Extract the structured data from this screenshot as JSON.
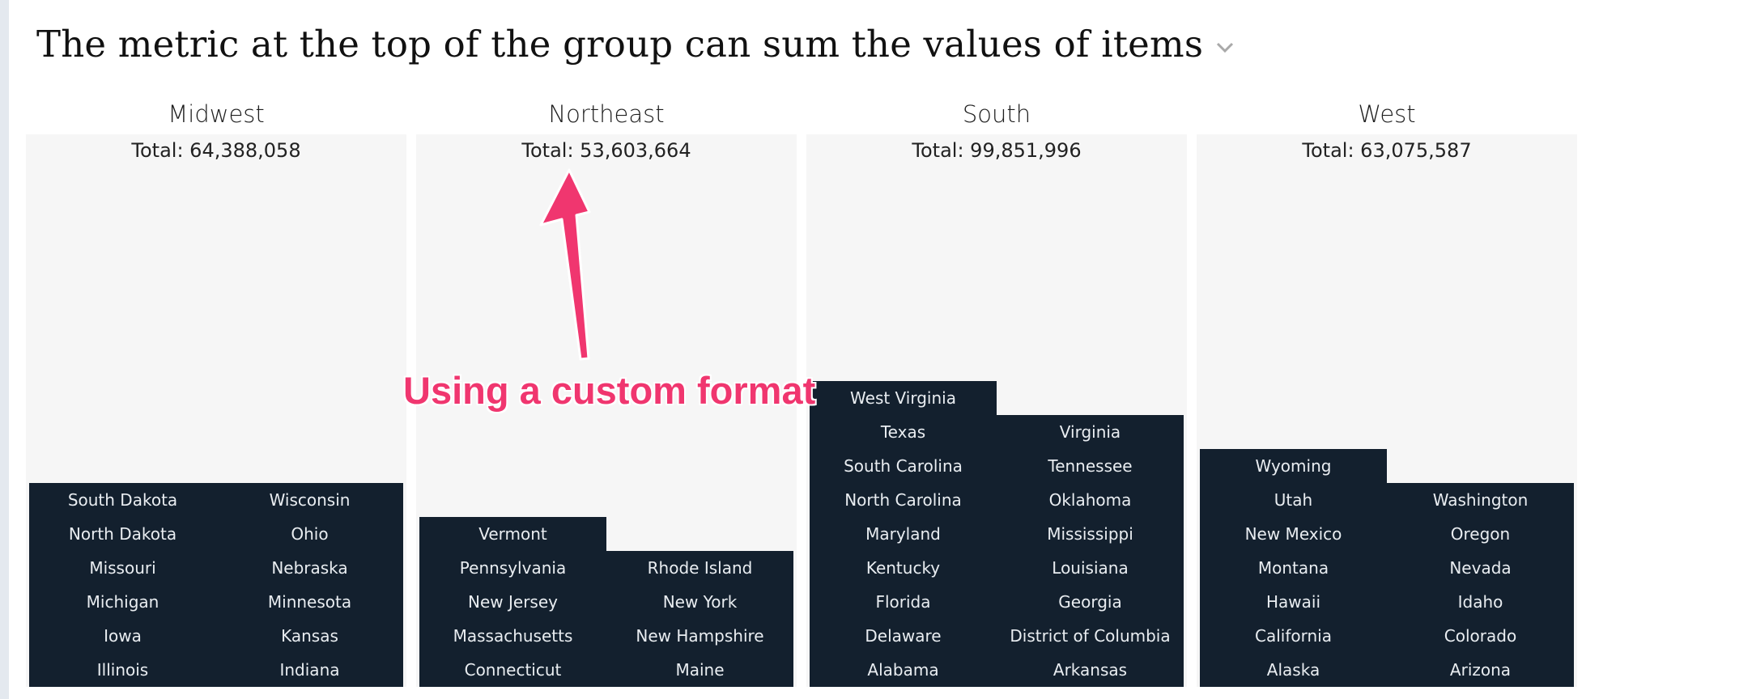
{
  "page": {
    "title": "The metric at the top of the group can sum the values of items",
    "title_menu_icon": "chevron-down-icon"
  },
  "groups": [
    {
      "name": "Midwest",
      "total": "Total: 64,388,058",
      "columns": [
        [
          "South Dakota",
          "North Dakota",
          "Missouri",
          "Michigan",
          "Iowa",
          "Illinois"
        ],
        [
          "Wisconsin",
          "Ohio",
          "Nebraska",
          "Minnesota",
          "Kansas",
          "Indiana"
        ]
      ]
    },
    {
      "name": "Northeast",
      "total": "Total: 53,603,664",
      "columns": [
        [
          "Vermont",
          "Pennsylvania",
          "New Jersey",
          "Massachusetts",
          "Connecticut"
        ],
        [
          "Rhode Island",
          "New York",
          "New Hampshire",
          "Maine"
        ]
      ]
    },
    {
      "name": "South",
      "total": "Total: 99,851,996",
      "columns": [
        [
          "West Virginia",
          "Texas",
          "South Carolina",
          "North Carolina",
          "Maryland",
          "Kentucky",
          "Florida",
          "Delaware",
          "Alabama"
        ],
        [
          "Virginia",
          "Tennessee",
          "Oklahoma",
          "Mississippi",
          "Louisiana",
          "Georgia",
          "District of Columbia",
          "Arkansas"
        ]
      ]
    },
    {
      "name": "West",
      "total": "Total: 63,075,587",
      "columns": [
        [
          "Wyoming",
          "Utah",
          "New Mexico",
          "Montana",
          "Hawaii",
          "California",
          "Alaska"
        ],
        [
          "Washington",
          "Oregon",
          "Nevada",
          "Idaho",
          "Colorado",
          "Arizona"
        ]
      ]
    }
  ],
  "annotation": {
    "text": "Using a custom format",
    "color": "#f0366f"
  },
  "colors": {
    "tile": "#13202e",
    "tile_text": "#e9edf1",
    "group_bg": "#f6f6f6"
  }
}
